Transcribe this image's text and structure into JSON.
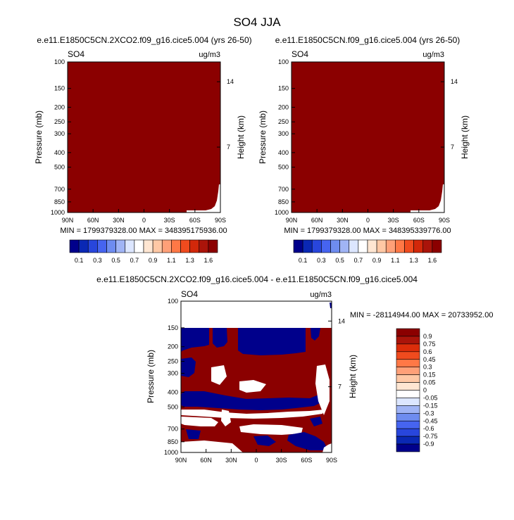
{
  "page_title": "SO4 JJA",
  "chart_data": [
    {
      "type": "heatmap",
      "title": "e.e11.E1850C5CN.2XCO2.f09_g16.cice5.004 (yrs 26-50)",
      "left_label": "SO4",
      "right_label": "ug/m3",
      "ylabel": "Pressure (mb)",
      "y2label": "Height (km)",
      "x_ticks": [
        "90N",
        "60N",
        "30N",
        "0",
        "30S",
        "60S",
        "90S"
      ],
      "y_ticks": [
        "100",
        "150",
        "200",
        "250",
        "300",
        "400",
        "500",
        "700",
        "850",
        "1000"
      ],
      "y2_ticks": [
        "14",
        "7"
      ],
      "fill_color": "#8b0000",
      "stats": "MIN = 1799379328.00   MAX = 348395175936.00",
      "colorbar_levels": [
        "0.1",
        "0.3",
        "0.5",
        "0.7",
        "0.9",
        "1.1",
        "1.3",
        "1.6"
      ]
    },
    {
      "type": "heatmap",
      "title": "e.e11.E1850C5CN.f09_g16.cice5.004 (yrs 26-50)",
      "left_label": "SO4",
      "right_label": "ug/m3",
      "ylabel": "Pressure (mb)",
      "y2label": "Height (km)",
      "x_ticks": [
        "90N",
        "60N",
        "30N",
        "0",
        "30S",
        "60S",
        "90S"
      ],
      "y_ticks": [
        "100",
        "150",
        "200",
        "250",
        "300",
        "400",
        "500",
        "700",
        "850",
        "1000"
      ],
      "y2_ticks": [
        "14",
        "7"
      ],
      "fill_color": "#8b0000",
      "stats": "MIN = 1799379328.00   MAX = 348395339776.00",
      "colorbar_levels": [
        "0.1",
        "0.3",
        "0.5",
        "0.7",
        "0.9",
        "1.1",
        "1.3",
        "1.6"
      ]
    },
    {
      "type": "heatmap",
      "title": "e.e11.E1850C5CN.2XCO2.f09_g16.cice5.004 - e.e11.E1850C5CN.f09_g16.cice5.004",
      "left_label": "SO4",
      "right_label": "ug/m3",
      "ylabel": "Pressure (mb)",
      "y2label": "Height (km)",
      "x_ticks": [
        "90N",
        "60N",
        "30N",
        "0",
        "30S",
        "60S",
        "90S"
      ],
      "y_ticks": [
        "100",
        "150",
        "200",
        "250",
        "300",
        "400",
        "500",
        "700",
        "850",
        "1000"
      ],
      "y2_ticks": [
        "14",
        "7"
      ],
      "stats": "MIN = -28114944.00   MAX = 20733952.00",
      "colorbar_levels": [
        "0.9",
        "0.75",
        "0.6",
        "0.45",
        "0.3",
        "0.15",
        "0.05",
        "0",
        "-0.05",
        "-0.15",
        "-0.3",
        "-0.45",
        "-0.6",
        "-0.75",
        "-0.9"
      ]
    }
  ],
  "colors": {
    "seq_palette": [
      "#00008b",
      "#0a28b4",
      "#2846dc",
      "#4664f0",
      "#6e8cf0",
      "#a0b4f5",
      "#dce6ff",
      "#ffffff",
      "#ffe6d2",
      "#ffc8a5",
      "#ffa078",
      "#ff7846",
      "#f04b1e",
      "#d2280a",
      "#aa140a",
      "#8b0000"
    ],
    "diff_palette": [
      "#8b0000",
      "#aa140a",
      "#dc2d0a",
      "#f04b1e",
      "#ff7846",
      "#ffa078",
      "#ffc8a5",
      "#ffe6d2",
      "#ffffff",
      "#dce6ff",
      "#a0b4f5",
      "#6e8cf0",
      "#4664f0",
      "#2846dc",
      "#0a28b4",
      "#00008b"
    ],
    "dark_red": "#8b0000",
    "dark_blue": "#00008b"
  }
}
